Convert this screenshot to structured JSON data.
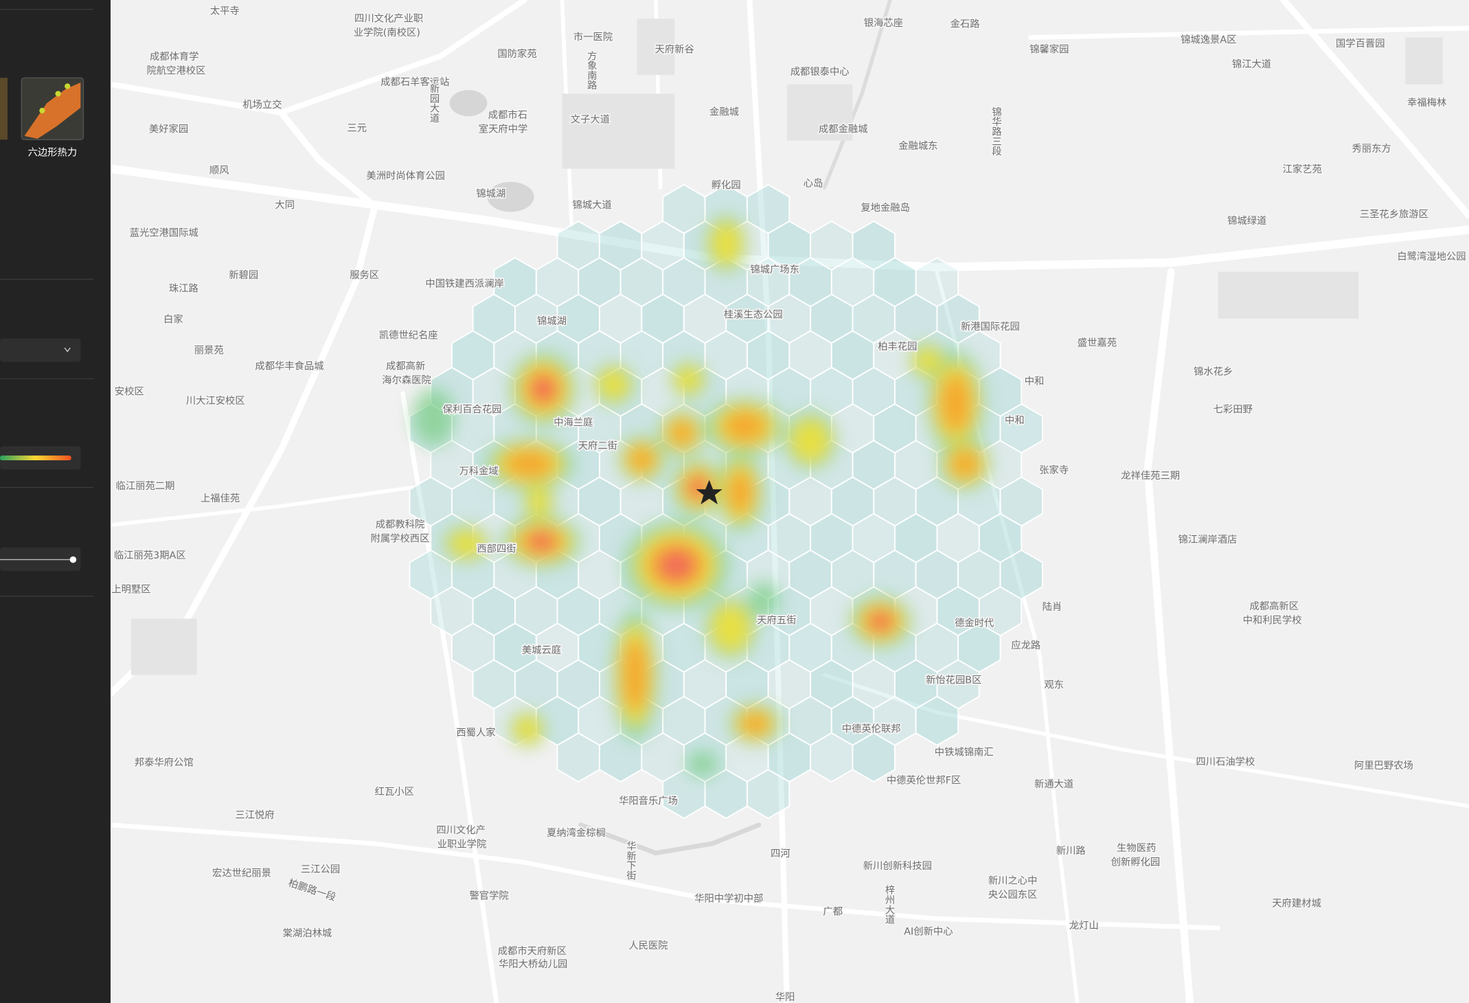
{
  "sidebar": {
    "layer_name": "六边形热力"
  },
  "map": {
    "labels": [
      "太平寺",
      "四川文化产业职",
      "业学院(南校区)",
      "市一医院",
      "天府新谷",
      "银海芯座",
      "金石路",
      "锦馨家园",
      "锦城逸景A区",
      "国学百晋园",
      "锦江大道",
      "成都体育学",
      "院航空港校区",
      "国防家苑",
      "成都石羊客运站",
      "成都银泰中心",
      "机场立交",
      "成都市石",
      "室天府中学",
      "文子大道",
      "金融城",
      "幸福梅林",
      "美好家园",
      "三元",
      "成都金融城",
      "秀丽东方",
      "金融城东",
      "顺风",
      "美洲时尚体育公园",
      "江家艺苑",
      "孵化园",
      "心岛",
      "锦城湖",
      "锦城大道",
      "复地金融岛",
      "大同",
      "锦城绿道",
      "三圣花乡旅游区",
      "蓝光空港国际城",
      "白鹭湾湿地公园",
      "新碧园",
      "服务区",
      "锦城广场东",
      "中国铁建西派澜岸",
      "珠江路",
      "桂溪生态公园",
      "锦城湖",
      "白家",
      "新港国际花园",
      "凯德世纪名座",
      "盛世嘉苑",
      "丽景苑",
      "柏丰花园",
      "成都高新",
      "海尔森医院",
      "成都华丰食品城",
      "锦水花乡",
      "中和",
      "安校区",
      "川大江安校区",
      "保利百合花园",
      "七彩田野",
      "中海兰庭",
      "天府二街",
      "中和",
      "张家寺",
      "龙祥佳苑三期",
      "万科金域",
      "临江丽苑二期",
      "上福佳苑",
      "成都教科院",
      "附属学校西区",
      "锦江澜岸酒店",
      "西部四街",
      "临江丽苑3期A区",
      "上明墅区",
      "陆肖",
      "成都高新区",
      "中和利民学校",
      "天府五街",
      "德金时代",
      "应龙路",
      "美城云庭",
      "新怡花园B区",
      "观东",
      "西蜀人家",
      "中德英伦联邦",
      "中铁城锦南汇",
      "邦泰华府公馆",
      "四川石油学校",
      "阿里巴野农场",
      "中德英伦世邦F区",
      "红瓦小区",
      "新通大道",
      "华阳音乐广场",
      "三江悦府",
      "四川文化产",
      "业职业学院",
      "夏纳湾金棕榈",
      "四河",
      "新川路",
      "生物医药",
      "创新孵化园",
      "新川创新科技园",
      "宏达世纪丽景",
      "三江公园",
      "新川之心中",
      "央公园东区",
      "柏鹏路一段",
      "警官学院",
      "华阳中学初中部",
      "天府建材城",
      "广都",
      "棠湖泊林城",
      "AI创新中心",
      "龙灯山",
      "人民医院",
      "成都市天府新区",
      "华阳大桥幼儿园",
      "华阳",
      "方象南路",
      "新园大道",
      "锦华路三段",
      "华新下街",
      "梓州大道"
    ]
  }
}
